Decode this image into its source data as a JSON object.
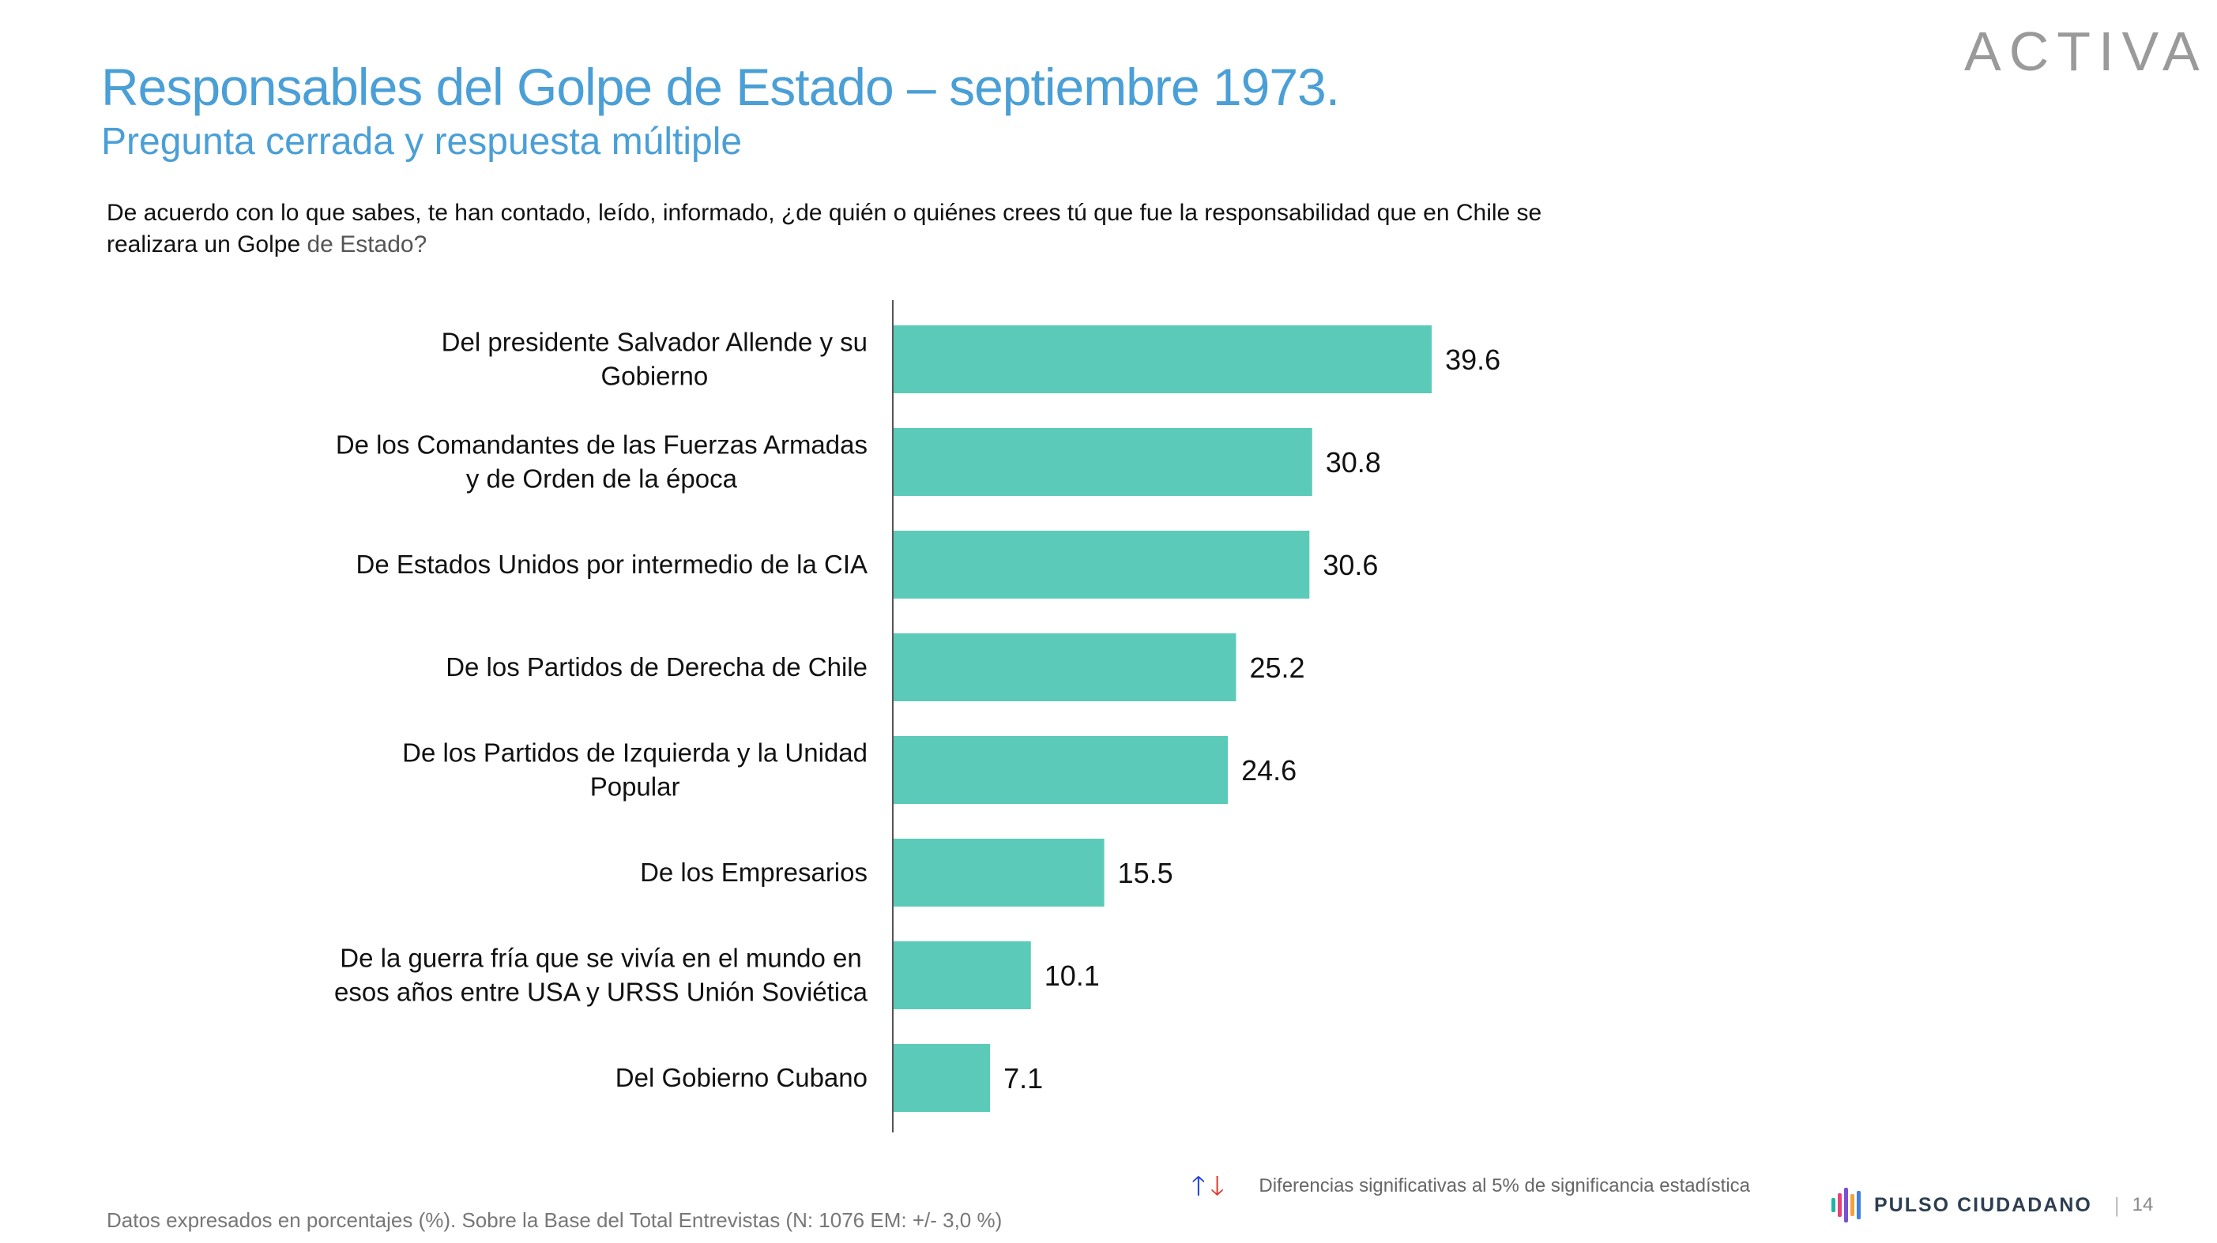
{
  "header": {
    "title": "Responsables del Golpe de Estado – septiembre 1973.",
    "subtitle": "Pregunta cerrada y respuesta múltiple",
    "logo_text": "ACTIVA"
  },
  "question": {
    "main": "De acuerdo con lo que sabes, te han contado, leído, informado, ¿de quién o quiénes crees tú  que fue la responsabilidad que en Chile se realizara un Golpe ",
    "end": " de Estado?"
  },
  "chart_data": {
    "type": "bar",
    "orientation": "horizontal",
    "categories": [
      [
        "Del presidente Salvador Allende y su",
        "Gobierno"
      ],
      [
        "De los Comandantes de las Fuerzas Armadas",
        "y de Orden de la época"
      ],
      [
        "De Estados Unidos por intermedio de la CIA"
      ],
      [
        "De los Partidos de Derecha de Chile"
      ],
      [
        "De los Partidos de Izquierda y la Unidad",
        "Popular"
      ],
      [
        "De los Empresarios"
      ],
      [
        "De la guerra fría que se vivía en el mundo en",
        "esos años entre USA y URSS Unión Soviética"
      ],
      [
        "Del Gobierno Cubano"
      ]
    ],
    "values": [
      39.6,
      30.8,
      30.6,
      25.2,
      24.6,
      15.5,
      10.1,
      7.1
    ],
    "value_labels": [
      "39.6",
      "30.8",
      "30.6",
      "25.2",
      "24.6",
      "15.5",
      "10.1",
      "7.1"
    ],
    "xlim": [
      0,
      100
    ],
    "color": "#5ccab8",
    "grid": false
  },
  "legend": {
    "up_arrow": "🡑",
    "down_arrow": "🡓",
    "text": "Diferencias  significativas  al 5% de significancia estadística",
    "up_color": "#1e3fd6",
    "down_color": "#e0362c"
  },
  "footer": {
    "note": "Datos expresados en porcentajes (%). Sobre la Base del Total Entrevistas (N: 1076 EM: +/- 3,0 %)",
    "brand": "PULSO CIUDADANO",
    "separator": "|",
    "page_number": "14"
  }
}
